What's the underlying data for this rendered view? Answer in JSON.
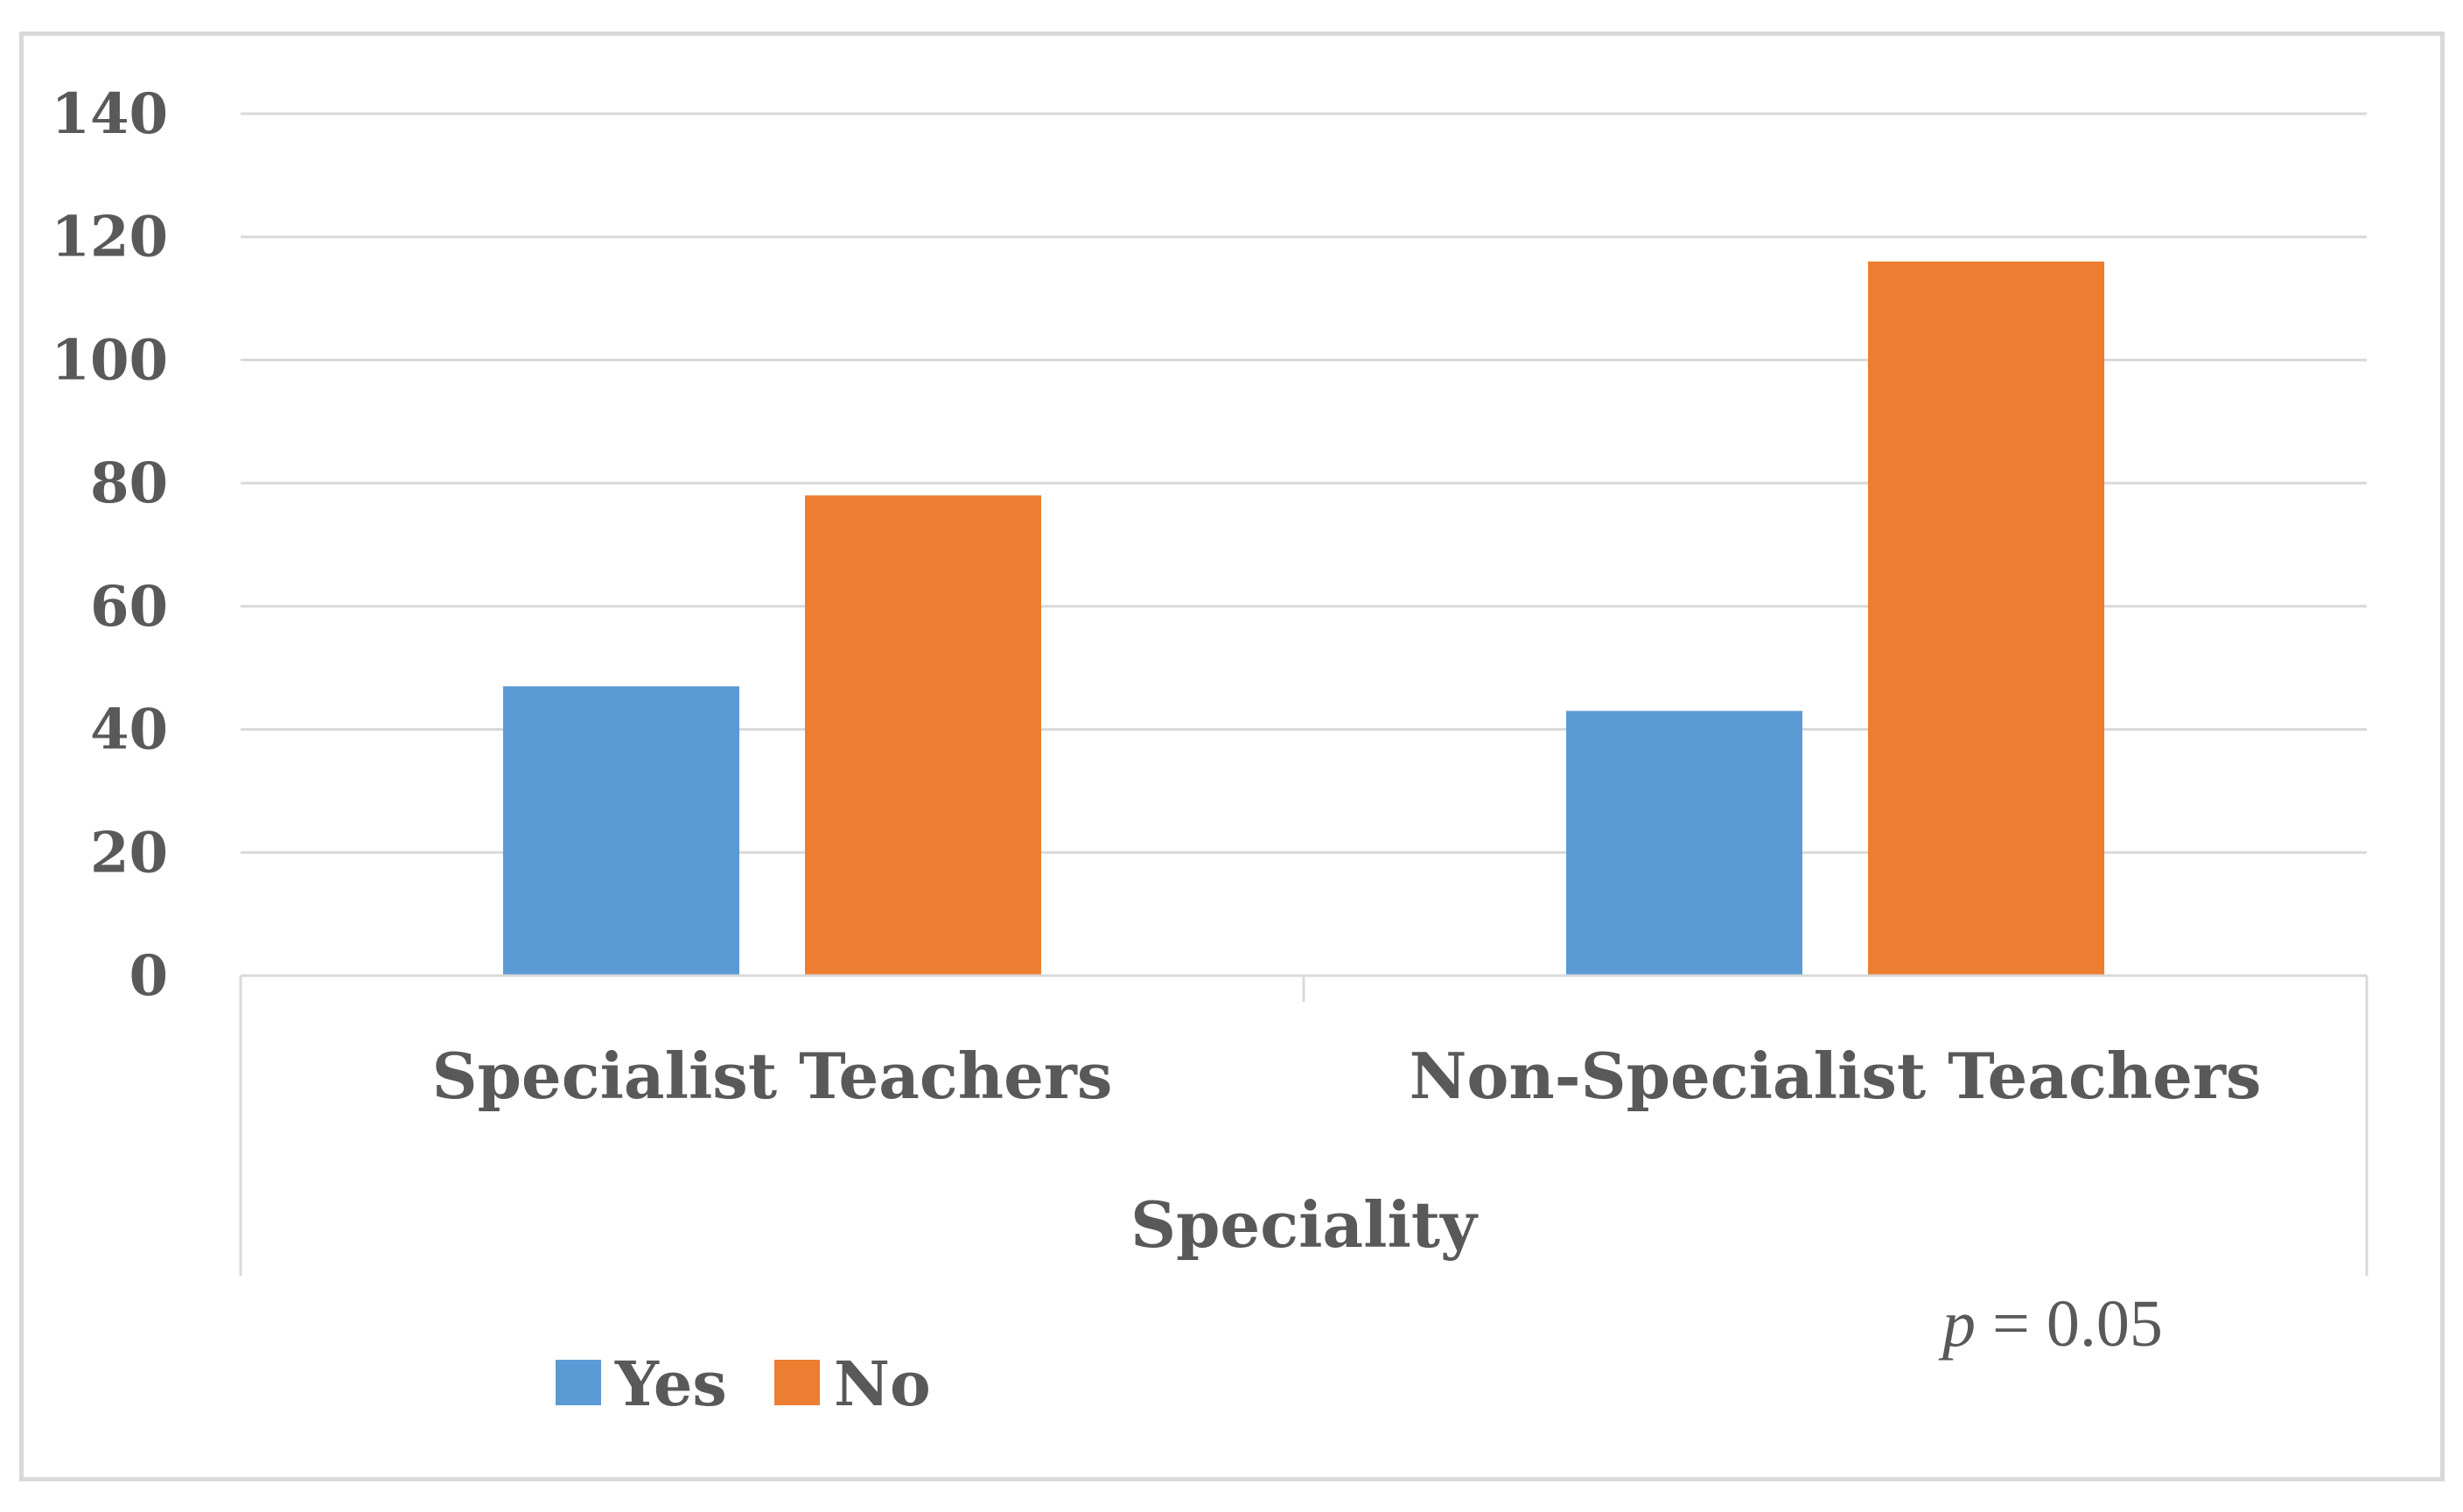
{
  "chart_data": {
    "type": "bar",
    "categories": [
      "Specialist Teachers",
      "Non-Specialist Teachers"
    ],
    "series": [
      {
        "name": "Yes",
        "values": [
          47,
          43
        ],
        "color": "#5b9bd5"
      },
      {
        "name": "No",
        "values": [
          78,
          116
        ],
        "color": "#ed7d31"
      }
    ],
    "xlabel": "Speciality",
    "ylabel": "",
    "ylim": [
      0,
      140
    ],
    "yticks": [
      0,
      20,
      40,
      60,
      80,
      100,
      120,
      140
    ],
    "grid": true,
    "legend_position": "bottom-left",
    "annotation": {
      "italic": "p",
      "rest": " = 0.05"
    }
  }
}
